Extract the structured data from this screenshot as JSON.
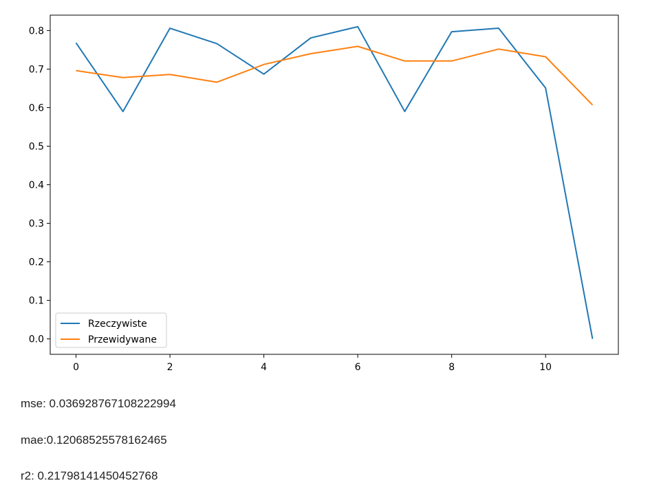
{
  "chart_data": {
    "type": "line",
    "title": "",
    "xlabel": "",
    "ylabel": "",
    "x": [
      0,
      1,
      2,
      3,
      4,
      5,
      6,
      7,
      8,
      9,
      10,
      11
    ],
    "xlim": [
      -0.55,
      11.55
    ],
    "ylim": [
      -0.04,
      0.84
    ],
    "xticks": [
      0,
      2,
      4,
      6,
      8,
      10
    ],
    "yticks": [
      0.0,
      0.1,
      0.2,
      0.3,
      0.4,
      0.5,
      0.6,
      0.7,
      0.8
    ],
    "ytick_labels": [
      "0.0",
      "0.1",
      "0.2",
      "0.3",
      "0.4",
      "0.5",
      "0.6",
      "0.7",
      "0.8"
    ],
    "grid": false,
    "legend_position": "lower-left",
    "series": [
      {
        "name": "Rzeczywiste",
        "color": "#1f77b4",
        "values": [
          0.768,
          0.59,
          0.806,
          0.766,
          0.687,
          0.781,
          0.81,
          0.59,
          0.797,
          0.806,
          0.651,
          0.0
        ]
      },
      {
        "name": "Przewidywane",
        "color": "#ff7f0e",
        "values": [
          0.696,
          0.678,
          0.686,
          0.666,
          0.712,
          0.74,
          0.759,
          0.721,
          0.721,
          0.752,
          0.732,
          0.607
        ]
      }
    ]
  },
  "metrics": {
    "mse": "mse: 0.036928767108222994",
    "mae": "mae:0.12068525578162465",
    "r2": "r2: 0.21798141450452768"
  }
}
